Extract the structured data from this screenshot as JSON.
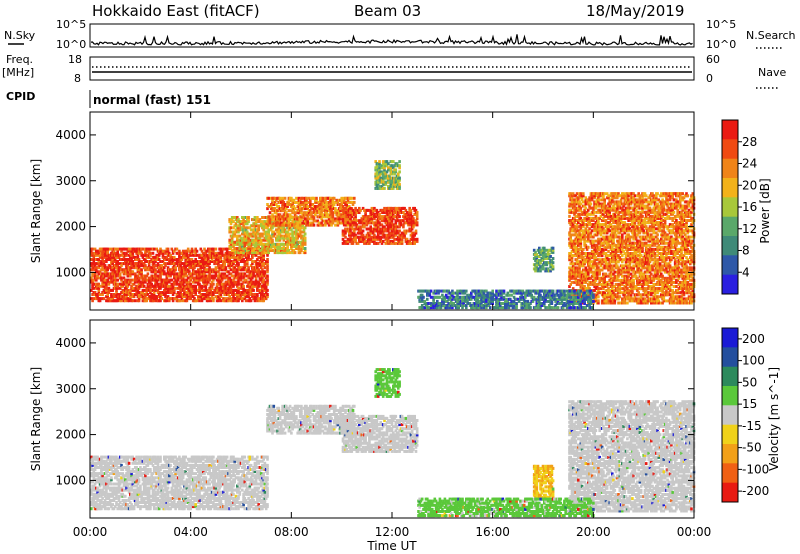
{
  "header": {
    "station": "Hokkaido East (fitACF)",
    "beam": "Beam 03",
    "date": "18/May/2019"
  },
  "strips": {
    "nsky_label": "N.Sky",
    "nsky_ticks": [
      "10^5",
      "10^0"
    ],
    "nsearch_label": "N.Search",
    "nsearch_ticks": [
      "10^5",
      "10^0"
    ],
    "freq_label_1": "Freq.",
    "freq_label_2": "[MHz]",
    "freq_ticks": [
      "18",
      "8"
    ],
    "nave_label": "Nave",
    "nave_ticks": [
      "60",
      "0"
    ],
    "cpid_label": "CPID",
    "cpid_value": "normal (fast) 151"
  },
  "colors": {
    "power_scale": [
      "#2a1fe0",
      "#2e58a8",
      "#3f8a78",
      "#5aa86a",
      "#a8c83a",
      "#f2b21a",
      "#f08418",
      "#f04a12",
      "#ea1a12"
    ],
    "velocity_scale": [
      "#1a1ad6",
      "#244f9e",
      "#2c8a5c",
      "#5ac83a",
      "#c8c8c8",
      "#f0d21a",
      "#f2a018",
      "#f06014",
      "#e81a12"
    ]
  },
  "chart_data": [
    {
      "type": "heatmap",
      "title": "",
      "xlabel": "",
      "ylabel": "Slant Range [km]",
      "xlim": [
        "00:00",
        "24:00"
      ],
      "ylim": [
        180,
        4500
      ],
      "x_ticks": [
        "00:00",
        "04:00",
        "08:00",
        "12:00",
        "16:00",
        "20:00",
        "00:00"
      ],
      "y_ticks": [
        1000,
        2000,
        3000,
        4000
      ],
      "colorbar": {
        "label": "Power [dB]",
        "ticks": [
          "4",
          "8",
          "12",
          "16",
          "20",
          "24",
          "28"
        ],
        "range": [
          0,
          32
        ]
      },
      "regions": [
        {
          "t_start": 0.0,
          "t_end": 7.0,
          "r_min": 350,
          "r_max": 1500,
          "value": 28
        },
        {
          "t_start": 5.5,
          "t_end": 8.5,
          "r_min": 1400,
          "r_max": 2200,
          "value": 20
        },
        {
          "t_start": 7.0,
          "t_end": 10.5,
          "r_min": 2000,
          "r_max": 2600,
          "value": 24
        },
        {
          "t_start": 10.0,
          "t_end": 13.0,
          "r_min": 1600,
          "r_max": 2400,
          "value": 28
        },
        {
          "t_start": 11.3,
          "t_end": 12.3,
          "r_min": 2800,
          "r_max": 3400,
          "value": 14
        },
        {
          "t_start": 17.6,
          "t_end": 18.4,
          "r_min": 1000,
          "r_max": 1500,
          "value": 12
        },
        {
          "t_start": 19.0,
          "t_end": 24.0,
          "r_min": 300,
          "r_max": 2700,
          "value": 24
        },
        {
          "t_start": 13.0,
          "t_end": 20.0,
          "r_min": 200,
          "r_max": 600,
          "value": 8
        }
      ]
    },
    {
      "type": "heatmap",
      "title": "",
      "xlabel": "Time UT",
      "ylabel": "Slant Range [km]",
      "xlim": [
        "00:00",
        "24:00"
      ],
      "ylim": [
        180,
        4500
      ],
      "x_ticks": [
        "00:00",
        "04:00",
        "08:00",
        "12:00",
        "16:00",
        "20:00",
        "00:00"
      ],
      "y_ticks": [
        1000,
        2000,
        3000,
        4000
      ],
      "colorbar": {
        "label": "Velocity [m s^-1]",
        "ticks": [
          "200",
          "100",
          "50",
          "15",
          "-15",
          "-50",
          "-100",
          "-200"
        ],
        "range": [
          -250,
          250
        ]
      },
      "regions": [
        {
          "t_start": 0.0,
          "t_end": 7.0,
          "r_min": 350,
          "r_max": 1500,
          "value": 0
        },
        {
          "t_start": 7.0,
          "t_end": 10.5,
          "r_min": 2000,
          "r_max": 2600,
          "value": 0
        },
        {
          "t_start": 10.0,
          "t_end": 13.0,
          "r_min": 1600,
          "r_max": 2400,
          "value": 0
        },
        {
          "t_start": 11.3,
          "t_end": 12.3,
          "r_min": 2800,
          "r_max": 3400,
          "value": 60
        },
        {
          "t_start": 17.6,
          "t_end": 18.4,
          "r_min": 600,
          "r_max": 1300,
          "value": -80
        },
        {
          "t_start": 19.0,
          "t_end": 24.0,
          "r_min": 300,
          "r_max": 2700,
          "value": 0
        },
        {
          "t_start": 13.0,
          "t_end": 20.0,
          "r_min": 200,
          "r_max": 600,
          "value": 40
        }
      ]
    }
  ]
}
